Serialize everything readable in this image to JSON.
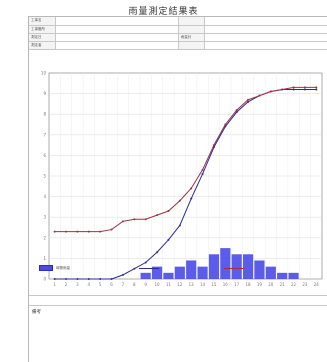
{
  "document": {
    "title": "雨量測定結果表"
  },
  "info": {
    "rows": [
      {
        "label": "工事名",
        "value": "",
        "label2": "",
        "value2": ""
      },
      {
        "label": "工事箇所",
        "value": "",
        "label2": "",
        "value2": ""
      },
      {
        "label": "測定日",
        "value": "",
        "label2": "雨量計",
        "value2": ""
      },
      {
        "label": "測定者",
        "value": "",
        "label2": "",
        "value2": ""
      }
    ]
  },
  "legend": {
    "bars": "時間雨量",
    "line_blue": "",
    "line_red": ""
  },
  "notes": {
    "label": "備考"
  },
  "chart_data": {
    "type": "bar",
    "title": "",
    "xlabel": "",
    "ylabel": "",
    "x": [
      1,
      2,
      3,
      4,
      5,
      6,
      7,
      8,
      9,
      10,
      11,
      12,
      13,
      14,
      15,
      16,
      17,
      18,
      19,
      20,
      21,
      22,
      23,
      24
    ],
    "ylim": [
      0,
      10
    ],
    "grid": true,
    "legend_position": "bottom",
    "series": [
      {
        "kind": "bar",
        "color": "#4a4ae8",
        "values": [
          0,
          0,
          0,
          0,
          0,
          0,
          0,
          0,
          0.3,
          0.6,
          0.3,
          0.6,
          0.9,
          0.6,
          1.2,
          1.5,
          1.2,
          1.2,
          0.9,
          0.6,
          0.3,
          0.3,
          0,
          0
        ]
      },
      {
        "kind": "line",
        "color": "#2a2a9a",
        "values": [
          0,
          0,
          0,
          0,
          0,
          0,
          0.2,
          0.5,
          0.8,
          1.3,
          1.9,
          2.6,
          3.9,
          5.1,
          6.4,
          7.4,
          8.1,
          8.6,
          8.9,
          9.1,
          9.2,
          9.2,
          9.2,
          9.2
        ]
      },
      {
        "kind": "line",
        "color": "#a03040",
        "values": [
          2.3,
          2.3,
          2.3,
          2.3,
          2.3,
          2.4,
          2.8,
          2.9,
          2.9,
          3.1,
          3.3,
          3.8,
          4.4,
          5.3,
          6.5,
          7.5,
          8.2,
          8.7,
          8.9,
          9.1,
          9.2,
          9.3,
          9.3,
          9.3
        ]
      }
    ]
  }
}
